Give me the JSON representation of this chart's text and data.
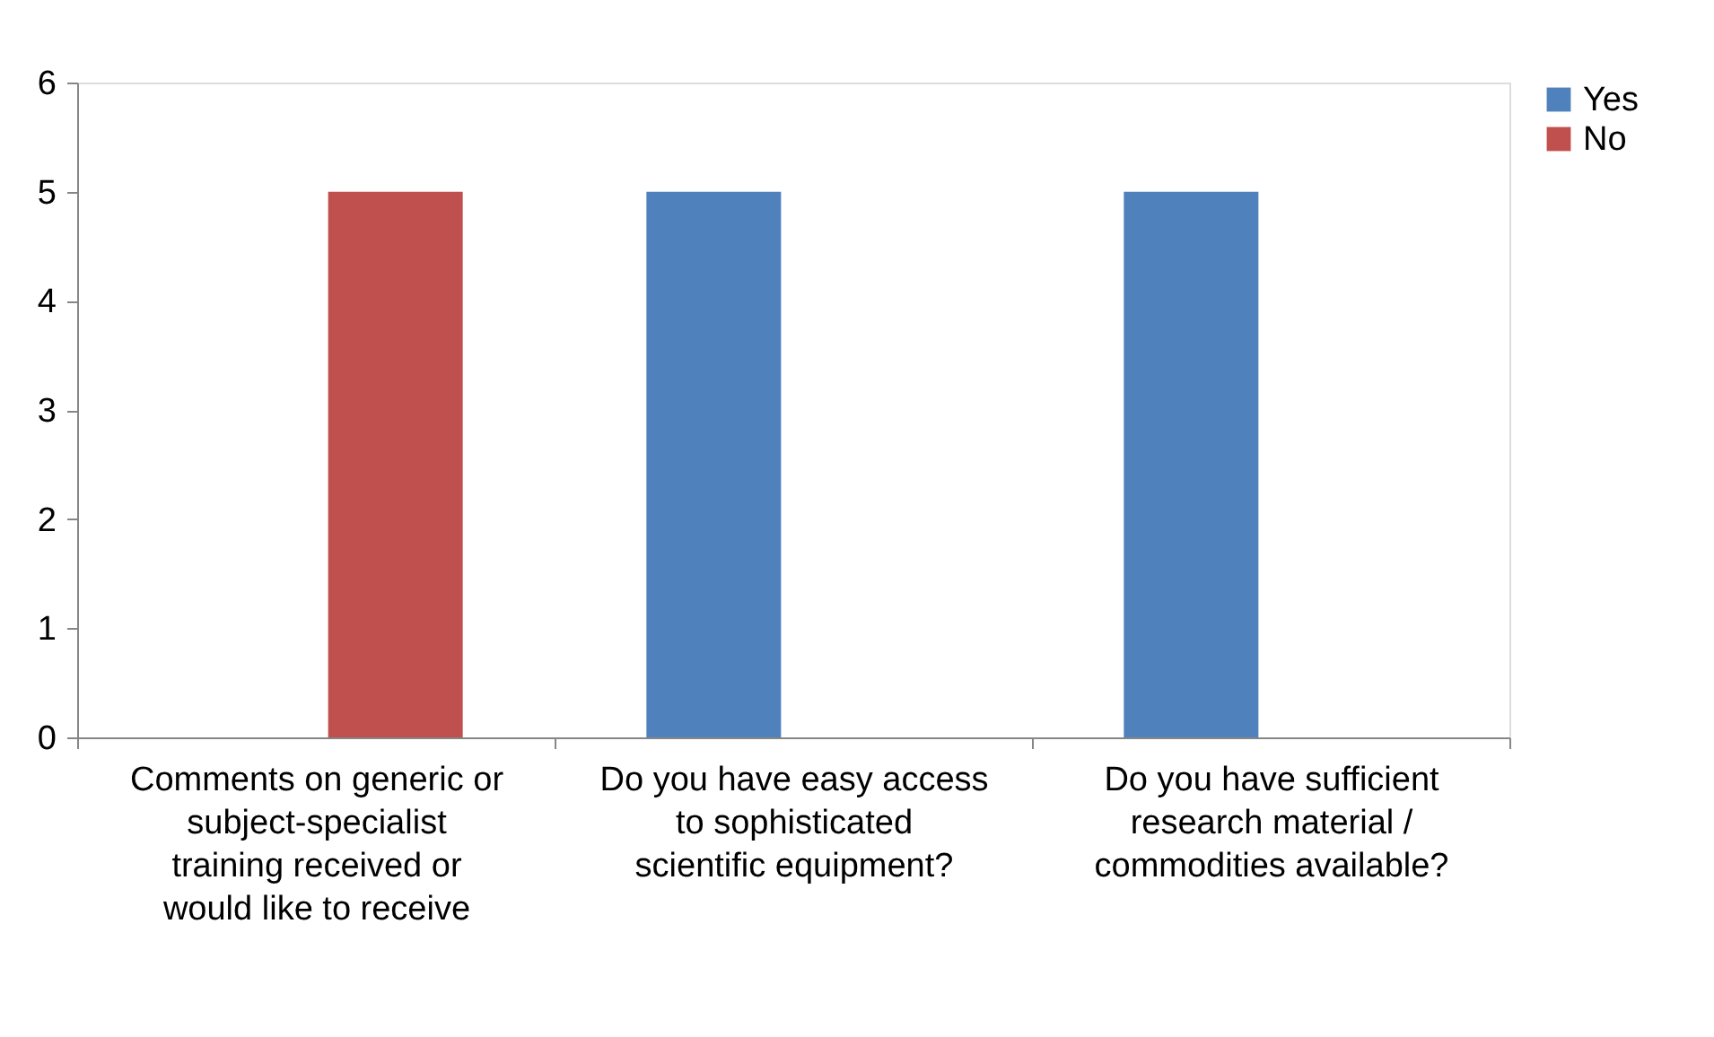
{
  "chart_data": {
    "type": "bar",
    "categories": [
      "Comments on generic or subject-specialist training received or would like to receive",
      "Do you have easy access to sophisticated scientific equipment?",
      "Do you have sufficient research material / commodities available?"
    ],
    "series": [
      {
        "name": "Yes",
        "color": "#4f81bd",
        "values": [
          0,
          5,
          5
        ]
      },
      {
        "name": "No",
        "color": "#c0504d",
        "values": [
          5,
          0,
          0
        ]
      }
    ],
    "ylim": [
      0,
      6
    ],
    "yticks": [
      0,
      1,
      2,
      3,
      4,
      5,
      6
    ],
    "grid": false,
    "legend": "right"
  }
}
